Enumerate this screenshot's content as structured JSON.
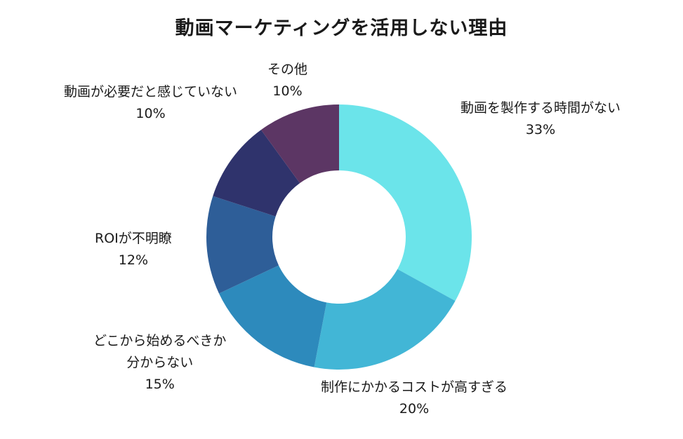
{
  "chart_data": {
    "type": "pie",
    "variant": "donut",
    "title": "動画マーケティングを活用しない理由",
    "start_angle_deg": 0,
    "direction": "clockwise",
    "slices": [
      {
        "label": [
          "動画を製作する時間がない"
        ],
        "value": 33,
        "value_label": "33%",
        "color": "#6be4ea"
      },
      {
        "label": [
          "制作にかかるコストが高すぎる"
        ],
        "value": 20,
        "value_label": "20%",
        "color": "#42b6d6"
      },
      {
        "label": [
          "どこから始めるべきか",
          "分からない"
        ],
        "value": 15,
        "value_label": "15%",
        "color": "#2d8abc"
      },
      {
        "label": [
          "ROIが不明瞭"
        ],
        "value": 12,
        "value_label": "12%",
        "color": "#2e5e98"
      },
      {
        "label": [
          "動画が必要だと感じていない"
        ],
        "value": 10,
        "value_label": "10%",
        "color": "#2f336c"
      },
      {
        "label": [
          "その他"
        ],
        "value": 10,
        "value_label": "10%",
        "color": "#5c3664"
      }
    ]
  }
}
